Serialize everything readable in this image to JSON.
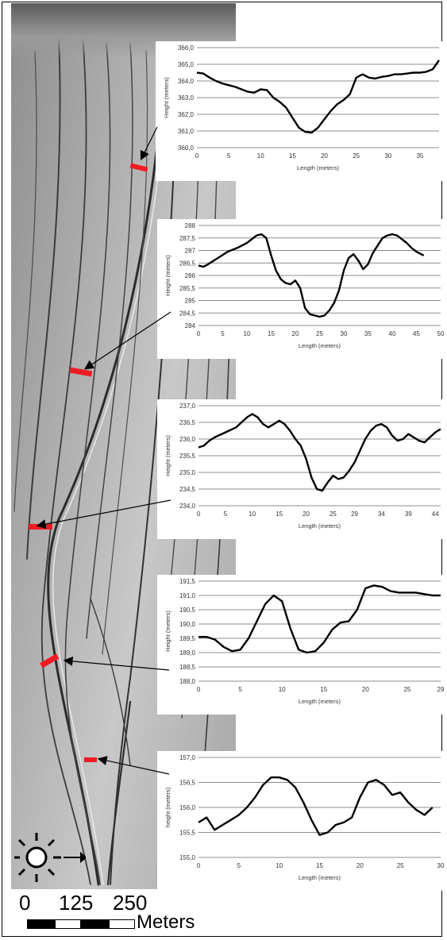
{
  "scale_bar": {
    "labels": [
      "0",
      "125",
      "250"
    ],
    "unit": "Meters"
  },
  "colors": {
    "profile_marker": "#ee1c24",
    "line": "#000000",
    "grid": "#8c8c8c"
  },
  "icons": [
    "sun-icon",
    "direction-arrow-icon"
  ],
  "chart_data": [
    {
      "type": "line",
      "xlabel": "Length (meters)",
      "ylabel": "Height (meters)",
      "x_ticks": [
        0,
        5,
        10,
        15,
        20,
        25,
        30,
        35
      ],
      "x_tick_labels": [
        "0",
        "5",
        "10",
        "15",
        "20",
        "25",
        "30",
        "35"
      ],
      "xlim": [
        0,
        38
      ],
      "y_ticks": [
        360.0,
        361.0,
        362.0,
        363.0,
        364.0,
        365.0,
        366.0
      ],
      "y_tick_labels": [
        "360,0",
        "361,0",
        "362,0",
        "363,0",
        "364,0",
        "365,0",
        "366,0"
      ],
      "ylim": [
        360.0,
        366.0
      ],
      "grid": true,
      "x": [
        0,
        1,
        2,
        3,
        4,
        5,
        6,
        7,
        8,
        9,
        10,
        11,
        12,
        13,
        14,
        15,
        16,
        17,
        18,
        19,
        20,
        21,
        22,
        23,
        24,
        25,
        26,
        27,
        28,
        29,
        30,
        31,
        32,
        33,
        34,
        35,
        36,
        37,
        38
      ],
      "y": [
        364.5,
        364.45,
        364.2,
        364.0,
        363.85,
        363.75,
        363.65,
        363.5,
        363.35,
        363.3,
        363.5,
        363.45,
        363.0,
        362.75,
        362.4,
        361.8,
        361.2,
        360.95,
        360.9,
        361.2,
        361.7,
        362.2,
        362.6,
        362.85,
        363.2,
        364.2,
        364.4,
        364.2,
        364.15,
        364.25,
        364.3,
        364.4,
        364.4,
        364.45,
        364.5,
        364.5,
        364.55,
        364.7,
        365.25
      ]
    },
    {
      "type": "line",
      "xlabel": "Length (meters)",
      "ylabel": "Height (meters)",
      "x_ticks": [
        0,
        5,
        10,
        15,
        20,
        25,
        30,
        35,
        40,
        45,
        50
      ],
      "x_tick_labels": [
        "0",
        "5",
        "10",
        "15",
        "20",
        "25",
        "30",
        "35",
        "40",
        "45",
        "50"
      ],
      "xlim": [
        0,
        50
      ],
      "y_ticks": [
        284,
        284.5,
        285,
        285.5,
        286,
        286.5,
        287,
        287.5,
        288
      ],
      "y_tick_labels": [
        "284",
        "284,5",
        "285",
        "285,5",
        "286",
        "286,5",
        "287",
        "287,5",
        "288"
      ],
      "ylim": [
        284,
        288
      ],
      "grid": true,
      "x": [
        0,
        1,
        2,
        4,
        6,
        8,
        10,
        12,
        13,
        14,
        15,
        16,
        17,
        18,
        19,
        20,
        21,
        22,
        23,
        24,
        25,
        26,
        27,
        28,
        29,
        30,
        31,
        32,
        33,
        34,
        35,
        36,
        37,
        38,
        39,
        40,
        41,
        42,
        43,
        44,
        45,
        46.5
      ],
      "y": [
        286.4,
        286.35,
        286.45,
        286.7,
        286.95,
        287.1,
        287.3,
        287.6,
        287.65,
        287.5,
        286.8,
        286.2,
        285.85,
        285.7,
        285.65,
        285.8,
        285.5,
        284.7,
        284.45,
        284.4,
        284.35,
        284.4,
        284.6,
        284.9,
        285.4,
        286.2,
        286.7,
        286.85,
        286.6,
        286.25,
        286.45,
        286.9,
        287.2,
        287.5,
        287.6,
        287.65,
        287.6,
        287.45,
        287.3,
        287.1,
        286.95,
        286.8
      ]
    },
    {
      "type": "line",
      "xlabel": "Length (meters)",
      "ylabel": "Height (meters)",
      "x_ticks": [
        0,
        5,
        10,
        15,
        20,
        25,
        29,
        34,
        39,
        44
      ],
      "x_tick_labels": [
        "0",
        "5",
        "10",
        "15",
        "20",
        "25",
        "29",
        "34",
        "39",
        "44"
      ],
      "xlim": [
        0,
        45
      ],
      "y_ticks": [
        234.0,
        234.5,
        235.0,
        235.5,
        236.0,
        236.5,
        237.0
      ],
      "y_tick_labels": [
        "234,0",
        "234,5",
        "235,0",
        "235,5",
        "236,0",
        "236,5",
        "237,0"
      ],
      "ylim": [
        234.0,
        237.0
      ],
      "grid": true,
      "x": [
        0,
        1,
        2,
        3,
        5,
        7,
        8,
        9,
        10,
        11,
        12,
        13,
        14,
        15,
        16,
        17,
        18,
        19,
        20,
        21,
        22,
        23,
        24,
        25,
        26,
        27,
        28,
        29,
        30,
        31,
        32,
        33,
        34,
        35,
        36,
        37,
        38,
        39,
        40,
        41,
        42,
        43,
        44,
        45
      ],
      "y": [
        235.75,
        235.8,
        235.95,
        236.05,
        236.2,
        236.35,
        236.5,
        236.65,
        236.75,
        236.65,
        236.45,
        236.35,
        236.45,
        236.55,
        236.45,
        236.25,
        236.0,
        235.8,
        235.4,
        234.85,
        234.5,
        234.45,
        234.7,
        234.9,
        234.8,
        234.85,
        235.05,
        235.3,
        235.65,
        236.0,
        236.25,
        236.4,
        236.45,
        236.35,
        236.1,
        235.95,
        236.0,
        236.15,
        236.05,
        235.95,
        235.9,
        236.05,
        236.2,
        236.3
      ]
    },
    {
      "type": "line",
      "xlabel": "Length (meters)",
      "ylabel": "Height (meters)",
      "x_ticks": [
        0,
        5,
        10,
        15,
        20,
        25,
        29
      ],
      "x_tick_labels": [
        "0",
        "5",
        "10",
        "15",
        "20",
        "25",
        "29"
      ],
      "xlim": [
        0,
        29
      ],
      "y_ticks": [
        188.0,
        188.5,
        189.0,
        189.5,
        190.0,
        190.5,
        191.0,
        191.5
      ],
      "y_tick_labels": [
        "188,0",
        "188,5",
        "189,0",
        "189,5",
        "190,0",
        "190,5",
        "191,0",
        "191,5"
      ],
      "ylim": [
        188.0,
        191.5
      ],
      "grid": true,
      "x": [
        0,
        1,
        2,
        3,
        4,
        5,
        6,
        7,
        8,
        9,
        10,
        11,
        12,
        13,
        14,
        15,
        16,
        17,
        18,
        19,
        20,
        21,
        22,
        23,
        24,
        25,
        26,
        27,
        28,
        29
      ],
      "y": [
        189.55,
        189.55,
        189.45,
        189.2,
        189.05,
        189.1,
        189.5,
        190.1,
        190.7,
        191.0,
        190.8,
        189.85,
        189.1,
        189.0,
        189.05,
        189.35,
        189.8,
        190.05,
        190.1,
        190.5,
        191.25,
        191.35,
        191.3,
        191.15,
        191.1,
        191.1,
        191.1,
        191.05,
        191.0,
        191.0
      ]
    },
    {
      "type": "line",
      "xlabel": "Length (meters)",
      "ylabel": "height (meters)",
      "x_ticks": [
        0,
        5,
        10,
        15,
        20,
        25,
        30
      ],
      "x_tick_labels": [
        "0",
        "5",
        "10",
        "15",
        "20",
        "25",
        "30"
      ],
      "xlim": [
        0,
        30
      ],
      "y_ticks": [
        155.0,
        155.5,
        156.0,
        156.5,
        157.0
      ],
      "y_tick_labels": [
        "155,0",
        "155,5",
        "156,0",
        "156,5",
        "157,0"
      ],
      "ylim": [
        155.0,
        157.0
      ],
      "grid": true,
      "x": [
        0,
        1,
        2,
        3,
        4,
        5,
        6,
        7,
        8,
        9,
        10,
        11,
        12,
        13,
        14,
        15,
        16,
        17,
        18,
        19,
        20,
        21,
        22,
        23,
        24,
        25,
        26,
        27,
        28,
        29
      ],
      "y": [
        155.7,
        155.8,
        155.55,
        155.65,
        155.75,
        155.85,
        156.0,
        156.2,
        156.45,
        156.6,
        156.6,
        156.55,
        156.4,
        156.1,
        155.75,
        155.45,
        155.5,
        155.65,
        155.7,
        155.8,
        156.2,
        156.5,
        156.55,
        156.45,
        156.25,
        156.3,
        156.1,
        155.95,
        155.85,
        156.0
      ]
    }
  ]
}
